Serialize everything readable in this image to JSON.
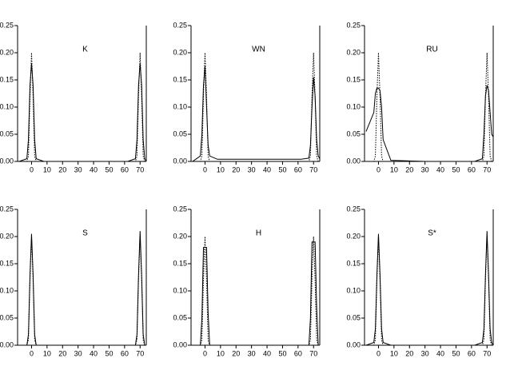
{
  "chart_data": [
    {
      "type": "line",
      "title": "K",
      "x": [
        -8,
        -3,
        -2,
        -1,
        0,
        1,
        2,
        3,
        8,
        30,
        62,
        67,
        68,
        69,
        70,
        71,
        72,
        73,
        74
      ],
      "series": [
        {
          "color": "#000000",
          "dash": false,
          "values": [
            0,
            0.005,
            0.04,
            0.14,
            0.18,
            0.14,
            0.04,
            0.005,
            0,
            0,
            0,
            0.005,
            0.04,
            0.14,
            0.18,
            0.14,
            0.04,
            0.005,
            0
          ]
        },
        {
          "color": "#000000",
          "dash": true,
          "values": [
            0,
            0,
            0.01,
            0.12,
            0.2,
            0.12,
            0.01,
            0,
            0,
            0,
            0,
            0,
            0.01,
            0.12,
            0.2,
            0.12,
            0.01,
            0,
            0
          ]
        }
      ],
      "xlim": [
        -9,
        74
      ],
      "xticks": [
        0,
        10,
        20,
        30,
        40,
        50,
        60,
        70
      ],
      "ylim": [
        0,
        0.25
      ],
      "yticks": [
        {
          "value": 0,
          "label": "0.00"
        },
        0.05,
        {
          "value": 0.1,
          "label": "0.10"
        },
        0.15,
        {
          "value": 0.2,
          "label": "0.20"
        },
        0.25
      ]
    },
    {
      "type": "line",
      "title": "WN",
      "x": [
        -8,
        -3,
        -2,
        -1,
        0,
        1,
        2,
        3,
        8,
        30,
        62,
        67,
        68,
        69,
        70,
        71,
        72,
        73,
        74
      ],
      "series": [
        {
          "color": "#000000",
          "dash": false,
          "values": [
            0,
            0.01,
            0.05,
            0.14,
            0.175,
            0.1,
            0.03,
            0.01,
            0.004,
            0.004,
            0.004,
            0.006,
            0.03,
            0.1,
            0.155,
            0.12,
            0.04,
            0.01,
            0.005
          ]
        },
        {
          "color": "#000000",
          "dash": true,
          "values": [
            0,
            0,
            0.01,
            0.12,
            0.2,
            0.12,
            0.01,
            0,
            0,
            0,
            0,
            0,
            0.01,
            0.12,
            0.2,
            0.12,
            0.01,
            0,
            0
          ]
        }
      ],
      "xlim": [
        -9,
        74
      ],
      "xticks": [
        0,
        10,
        20,
        30,
        40,
        50,
        60,
        70
      ],
      "ylim": [
        0,
        0.25
      ],
      "yticks": [
        {
          "value": 0,
          "label": "0.00"
        },
        0.05,
        {
          "value": 0.1,
          "label": "0.10"
        },
        0.15,
        {
          "value": 0.2,
          "label": "0.20"
        },
        0.25
      ]
    },
    {
      "type": "line",
      "title": "RU",
      "x": [
        -8,
        -3,
        -2,
        -1,
        0,
        1,
        2,
        3,
        8,
        30,
        62,
        67,
        68,
        69,
        70,
        71,
        72,
        73,
        74
      ],
      "series": [
        {
          "color": "#000000",
          "dash": false,
          "values": [
            0.055,
            0.09,
            0.125,
            0.135,
            0.135,
            0.13,
            0.1,
            0.04,
            0.002,
            0,
            0,
            0.005,
            0.05,
            0.12,
            0.14,
            0.13,
            0.09,
            0.05,
            0.045
          ]
        },
        {
          "color": "#000000",
          "dash": true,
          "values": [
            0,
            0,
            0.01,
            0.12,
            0.2,
            0.12,
            0.01,
            0,
            0,
            0,
            0,
            0,
            0.01,
            0.12,
            0.2,
            0.12,
            0.01,
            0,
            0
          ]
        }
      ],
      "xlim": [
        -9,
        74
      ],
      "xticks": [
        0,
        10,
        20,
        30,
        40,
        50,
        60,
        70
      ],
      "ylim": [
        0,
        0.25
      ],
      "yticks": [
        {
          "value": 0,
          "label": "0.00"
        },
        0.05,
        {
          "value": 0.1,
          "label": "0.10"
        },
        0.15,
        {
          "value": 0.2,
          "label": "0.20"
        },
        0.25
      ]
    },
    {
      "type": "line",
      "title": "S",
      "x": [
        -8,
        -3,
        -2,
        -1,
        0,
        1,
        2,
        3,
        8,
        30,
        62,
        67,
        68,
        69,
        70,
        71,
        72,
        73,
        74
      ],
      "series": [
        {
          "color": "#000000",
          "dash": false,
          "values": [
            0,
            0,
            0.02,
            0.13,
            0.205,
            0.13,
            0.02,
            0,
            0,
            0,
            0,
            0,
            0.02,
            0.13,
            0.21,
            0.13,
            0.02,
            0,
            0
          ]
        },
        {
          "color": "#000000",
          "dash": true,
          "values": [
            0,
            0,
            0.01,
            0.12,
            0.2,
            0.12,
            0.01,
            0,
            0,
            0,
            0,
            0,
            0.01,
            0.12,
            0.2,
            0.12,
            0.01,
            0,
            0
          ]
        }
      ],
      "xlim": [
        -9,
        74
      ],
      "xticks": [
        0,
        10,
        20,
        30,
        40,
        50,
        60,
        70
      ],
      "ylim": [
        0,
        0.25
      ],
      "yticks": [
        {
          "value": 0,
          "label": "0.00"
        },
        0.05,
        {
          "value": 0.1,
          "label": "0.10"
        },
        0.15,
        {
          "value": 0.2,
          "label": "0.20"
        },
        0.25
      ]
    },
    {
      "type": "line",
      "title": "H",
      "x": [
        -8,
        -3,
        -2,
        -1,
        0,
        1,
        2,
        3,
        8,
        30,
        62,
        67,
        68,
        69,
        70,
        71,
        72,
        73,
        74
      ],
      "series": [
        {
          "color": "#000000",
          "dash": false,
          "values": [
            0,
            0,
            0.05,
            0.18,
            0.18,
            0.18,
            0.06,
            0,
            0,
            0,
            0,
            0,
            0.05,
            0.19,
            0.19,
            0.19,
            0.07,
            0,
            0
          ]
        },
        {
          "color": "#000000",
          "dash": true,
          "values": [
            0,
            0,
            0.01,
            0.12,
            0.2,
            0.12,
            0.01,
            0,
            0,
            0,
            0,
            0,
            0.01,
            0.12,
            0.2,
            0.12,
            0.01,
            0,
            0
          ]
        }
      ],
      "xlim": [
        -9,
        74
      ],
      "xticks": [
        0,
        10,
        20,
        30,
        40,
        50,
        60,
        70
      ],
      "ylim": [
        0,
        0.25
      ],
      "yticks": [
        {
          "value": 0,
          "label": "0.00"
        },
        0.05,
        {
          "value": 0.1,
          "label": "0.10"
        },
        0.15,
        {
          "value": 0.2,
          "label": "0.20"
        },
        0.25
      ]
    },
    {
      "type": "line",
      "title": "S*",
      "x": [
        -8,
        -3,
        -2,
        -1,
        0,
        1,
        2,
        3,
        8,
        30,
        62,
        67,
        68,
        69,
        70,
        71,
        72,
        73,
        74
      ],
      "series": [
        {
          "color": "#000000",
          "dash": false,
          "values": [
            0,
            0.005,
            0.03,
            0.13,
            0.205,
            0.13,
            0.03,
            0.005,
            0,
            0,
            0,
            0.005,
            0.03,
            0.13,
            0.21,
            0.13,
            0.03,
            0.005,
            0
          ]
        },
        {
          "color": "#000000",
          "dash": true,
          "values": [
            0,
            0,
            0.01,
            0.12,
            0.2,
            0.12,
            0.01,
            0,
            0,
            0,
            0,
            0,
            0.01,
            0.12,
            0.2,
            0.12,
            0.01,
            0,
            0
          ]
        }
      ],
      "xlim": [
        -9,
        74
      ],
      "xticks": [
        0,
        10,
        20,
        30,
        40,
        50,
        60,
        70
      ],
      "ylim": [
        0,
        0.25
      ],
      "yticks": [
        {
          "value": 0,
          "label": "0.00"
        },
        0.05,
        {
          "value": 0.1,
          "label": "0.10"
        },
        0.15,
        {
          "value": 0.2,
          "label": "0.20"
        },
        0.25
      ]
    }
  ]
}
